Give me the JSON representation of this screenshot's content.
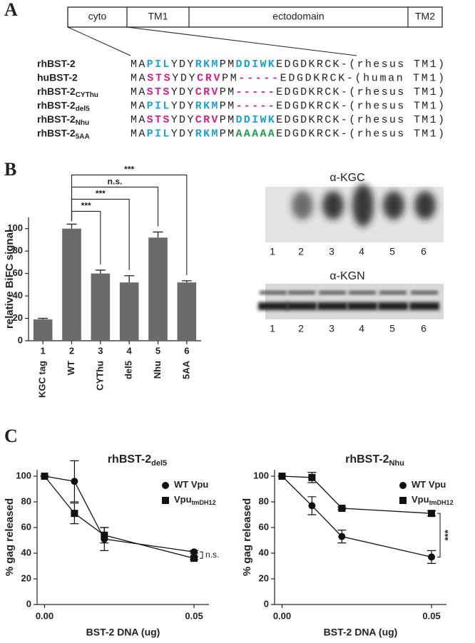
{
  "panel_labels": [
    "A",
    "B",
    "C"
  ],
  "domain_map": {
    "segments": [
      "cyto",
      "TM1",
      "ectodomain",
      "TM2"
    ]
  },
  "alignment": [
    {
      "name": "rhBST-2",
      "segments": [
        {
          "t": "MA",
          "c": "#222222"
        },
        {
          "t": "PIL",
          "c": "#1a9fd6"
        },
        {
          "t": "YDY",
          "c": "#222222"
        },
        {
          "t": "RKM",
          "c": "#1a9fd6"
        },
        {
          "t": "PM",
          "c": "#222222"
        },
        {
          "t": "DDIWK",
          "c": "#1a9fd6"
        },
        {
          "t": "EDGDKRCK-(rhesus TM1)",
          "c": "#222222"
        }
      ]
    },
    {
      "name": "huBST-2",
      "segments": [
        {
          "t": "MA",
          "c": "#222222"
        },
        {
          "t": "STS",
          "c": "#d0238a"
        },
        {
          "t": "YDY",
          "c": "#222222"
        },
        {
          "t": "CRV",
          "c": "#d0238a"
        },
        {
          "t": "PM",
          "c": "#222222"
        },
        {
          "t": "-----",
          "c": "#d0238a"
        },
        {
          "t": "EDGDKRCK-(human TM1)",
          "c": "#222222"
        }
      ]
    },
    {
      "name": "rhBST-2",
      "name_sub": "CYThu",
      "segments": [
        {
          "t": "MA",
          "c": "#222222"
        },
        {
          "t": "STS",
          "c": "#d0238a"
        },
        {
          "t": "YDY",
          "c": "#222222"
        },
        {
          "t": "CRV",
          "c": "#d0238a"
        },
        {
          "t": "PM",
          "c": "#222222"
        },
        {
          "t": "-----",
          "c": "#d0238a"
        },
        {
          "t": "EDGDKRCK-(rhesus TM1)",
          "c": "#222222"
        }
      ]
    },
    {
      "name": "rhBST-2",
      "name_sub": "del5",
      "segments": [
        {
          "t": "MA",
          "c": "#222222"
        },
        {
          "t": "PIL",
          "c": "#1a9fd6"
        },
        {
          "t": "YDY",
          "c": "#222222"
        },
        {
          "t": "RKM",
          "c": "#1a9fd6"
        },
        {
          "t": "PM",
          "c": "#222222"
        },
        {
          "t": "-----",
          "c": "#d0238a"
        },
        {
          "t": "EDGDKRCK-(rhesus TM1)",
          "c": "#222222"
        }
      ]
    },
    {
      "name": "rhBST-2",
      "name_sub": "Nhu",
      "segments": [
        {
          "t": "MA",
          "c": "#222222"
        },
        {
          "t": "STS",
          "c": "#d0238a"
        },
        {
          "t": "YDY",
          "c": "#222222"
        },
        {
          "t": "CRV",
          "c": "#d0238a"
        },
        {
          "t": "PM",
          "c": "#222222"
        },
        {
          "t": "DDIWK",
          "c": "#1a9fd6"
        },
        {
          "t": "EDGDKRCK-(rhesus TM1)",
          "c": "#222222"
        }
      ]
    },
    {
      "name": "rhBST-2",
      "name_sub": "5AA",
      "segments": [
        {
          "t": "MA",
          "c": "#222222"
        },
        {
          "t": "PIL",
          "c": "#1a9fd6"
        },
        {
          "t": "YDY",
          "c": "#222222"
        },
        {
          "t": "RKM",
          "c": "#1a9fd6"
        },
        {
          "t": "PM",
          "c": "#222222"
        },
        {
          "t": "AAAAA",
          "c": "#1f9e4a"
        },
        {
          "t": "EDGDKRCK-(rhesus TM1)",
          "c": "#222222"
        }
      ]
    }
  ],
  "blots": [
    {
      "title": "α-KGC",
      "lanes": [
        "1",
        "2",
        "3",
        "4",
        "5",
        "6"
      ]
    },
    {
      "title": "α-KGN",
      "lanes": [
        "1",
        "2",
        "3",
        "4",
        "5",
        "6"
      ]
    }
  ],
  "chart_data": [
    {
      "type": "bar",
      "ylabel": "relative BiFC signal",
      "lane_numbers": [
        "1",
        "2",
        "3",
        "4",
        "5",
        "6"
      ],
      "categories": [
        "KGC tag",
        "WT",
        "CYThu",
        "del5",
        "Nhu",
        "5AA"
      ],
      "values": [
        19,
        100,
        60,
        52,
        92,
        52
      ],
      "errors": [
        1,
        4,
        3,
        6,
        5,
        1.5
      ],
      "color": "#6b6b6b",
      "ylim": [
        0,
        110
      ],
      "yticks": [
        0,
        20,
        40,
        60,
        80,
        100
      ],
      "significance": [
        {
          "pair": [
            "WT",
            "CYThu"
          ],
          "label": "***"
        },
        {
          "pair": [
            "WT",
            "del5"
          ],
          "label": "***"
        },
        {
          "pair": [
            "WT",
            "Nhu"
          ],
          "label": "n.s."
        },
        {
          "pair": [
            "WT",
            "5AA"
          ],
          "label": "***"
        }
      ]
    },
    {
      "type": "line",
      "title": "rhBST-2",
      "title_sub": "del5",
      "xlabel": "BST-2 DNA (ug)",
      "ylabel": "% gag released",
      "x": [
        0,
        0.01,
        0.02,
        0.05
      ],
      "xlim": [
        -0.0025,
        0.055
      ],
      "xticks": [
        {
          "value": 0,
          "label": "0.00"
        },
        {
          "value": 0.05,
          "label": "0.05"
        }
      ],
      "ylim": [
        0,
        105
      ],
      "yticks": [
        0,
        20,
        40,
        60,
        80,
        100
      ],
      "series": [
        {
          "name": "WT Vpu",
          "marker": "circle",
          "color": "#111111",
          "values": [
            100,
            96,
            51,
            41
          ],
          "errors": [
            0,
            16,
            9,
            1
          ]
        },
        {
          "name": "Vpu",
          "name_sub": "tmDH12",
          "marker": "square",
          "color": "#111111",
          "values": [
            100,
            71,
            54,
            36
          ],
          "errors": [
            0,
            8,
            6,
            1
          ]
        }
      ],
      "annotation": "n.s."
    },
    {
      "type": "line",
      "title": "rhBST-2",
      "title_sub": "Nhu",
      "xlabel": "BST-2 DNA (ug)",
      "ylabel": "% gag released",
      "x": [
        0,
        0.01,
        0.02,
        0.05
      ],
      "xlim": [
        -0.0025,
        0.055
      ],
      "xticks": [
        {
          "value": 0,
          "label": "0.00"
        },
        {
          "value": 0.05,
          "label": "0.05"
        }
      ],
      "ylim": [
        0,
        105
      ],
      "yticks": [
        0,
        20,
        40,
        60,
        80,
        100
      ],
      "series": [
        {
          "name": "WT Vpu",
          "marker": "circle",
          "color": "#111111",
          "values": [
            100,
            77,
            53,
            37
          ],
          "errors": [
            0,
            7,
            5,
            5
          ]
        },
        {
          "name": "Vpu",
          "name_sub": "tmDH12",
          "marker": "square",
          "color": "#111111",
          "values": [
            100,
            99,
            75,
            71
          ],
          "errors": [
            0,
            4,
            1,
            2
          ]
        }
      ],
      "annotation": "***"
    }
  ]
}
